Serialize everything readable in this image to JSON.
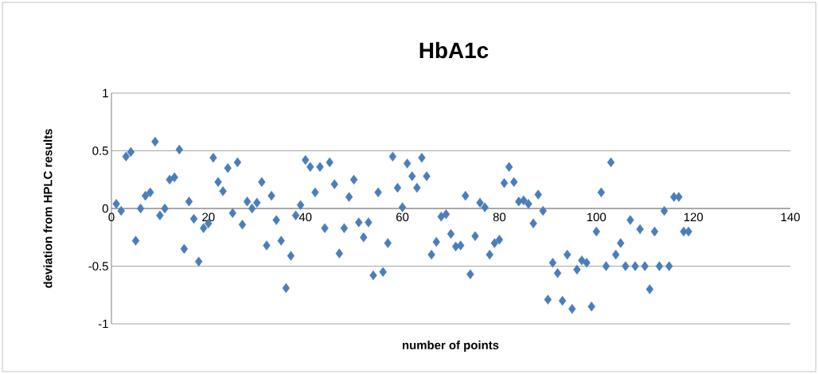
{
  "chart_data": {
    "type": "scatter",
    "title": "HbA1c",
    "xlabel": "number of points",
    "ylabel": "deviation from HPLC results",
    "x": [
      1,
      2,
      3,
      4,
      5,
      6,
      7,
      8,
      9,
      10,
      11,
      12,
      13,
      14,
      15,
      16,
      17,
      18,
      19,
      20,
      21,
      22,
      23,
      24,
      25,
      26,
      27,
      28,
      29,
      30,
      31,
      32,
      33,
      34,
      35,
      36,
      37,
      38,
      39,
      40,
      41,
      42,
      43,
      44,
      45,
      46,
      47,
      48,
      49,
      50,
      51,
      52,
      53,
      54,
      55,
      56,
      57,
      58,
      59,
      60,
      61,
      62,
      63,
      64,
      65,
      66,
      67,
      68,
      69,
      70,
      71,
      72,
      73,
      74,
      75,
      76,
      77,
      78,
      79,
      80,
      81,
      82,
      83,
      84,
      85,
      86,
      87,
      88,
      89,
      90,
      91,
      92,
      93,
      94,
      95,
      96,
      97,
      98,
      99,
      100,
      101,
      102,
      103,
      104,
      105,
      106,
      107,
      108,
      109,
      110,
      111,
      112,
      113,
      114,
      115,
      116,
      117,
      118,
      119
    ],
    "values": [
      0.04,
      -0.02,
      0.45,
      0.49,
      -0.28,
      0.0,
      0.11,
      0.14,
      0.58,
      -0.06,
      0.0,
      0.25,
      0.27,
      0.51,
      -0.35,
      0.06,
      -0.09,
      -0.46,
      -0.17,
      -0.13,
      0.44,
      0.23,
      0.15,
      0.35,
      -0.04,
      0.4,
      -0.14,
      0.06,
      0.0,
      0.05,
      0.23,
      -0.32,
      0.11,
      -0.1,
      -0.28,
      -0.69,
      -0.41,
      -0.06,
      0.03,
      0.42,
      0.36,
      0.14,
      0.36,
      -0.17,
      0.4,
      0.21,
      -0.39,
      -0.17,
      0.1,
      0.25,
      -0.12,
      -0.25,
      -0.12,
      -0.58,
      0.14,
      -0.55,
      -0.3,
      0.45,
      0.18,
      0.01,
      0.39,
      0.28,
      0.18,
      0.44,
      0.28,
      -0.4,
      -0.29,
      -0.07,
      -0.05,
      -0.22,
      -0.33,
      -0.32,
      0.11,
      -0.57,
      -0.24,
      0.05,
      0.01,
      -0.4,
      -0.3,
      -0.27,
      0.22,
      0.36,
      0.23,
      0.06,
      0.07,
      0.04,
      -0.13,
      0.12,
      -0.02,
      -0.79,
      -0.47,
      -0.56,
      -0.8,
      -0.4,
      -0.87,
      -0.53,
      -0.45,
      -0.47,
      -0.85,
      -0.2,
      0.14,
      -0.5,
      0.4,
      -0.4,
      -0.3,
      -0.5,
      -0.1,
      -0.5,
      -0.18,
      -0.5,
      -0.7,
      -0.2,
      -0.5,
      -0.02,
      -0.5,
      0.1,
      0.1,
      -0.2,
      -0.2
    ],
    "color": "#4a7ebb",
    "marker": "diamond",
    "xlim": [
      0,
      140
    ],
    "xticks": [
      0,
      20,
      40,
      60,
      80,
      100,
      120,
      140
    ],
    "ylim": [
      -1,
      1
    ],
    "yticks": [
      -1,
      -0.5,
      0,
      0.5,
      1
    ],
    "grid": "y"
  }
}
